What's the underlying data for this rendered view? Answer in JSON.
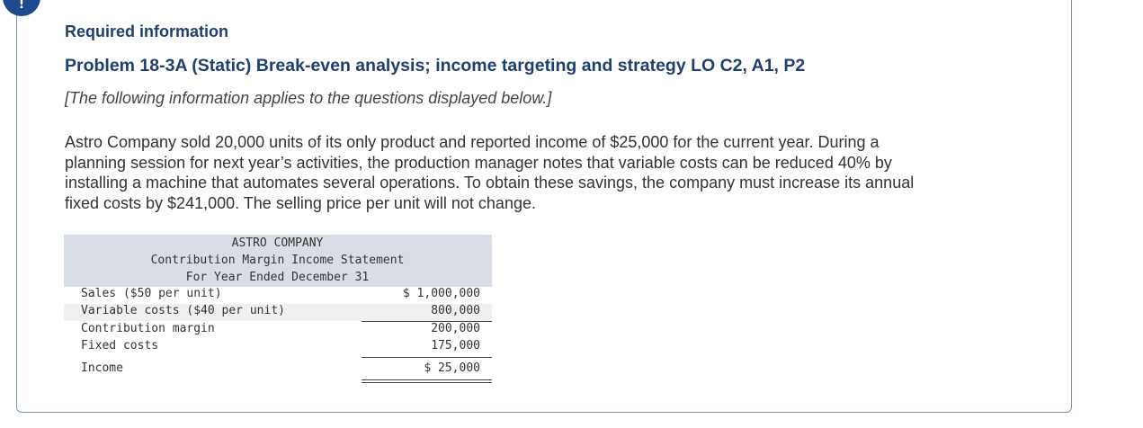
{
  "header": {
    "required_label": "Required information",
    "problem_title": "Problem 18-3A (Static) Break-even analysis; income targeting and strategy LO C2, A1, P2",
    "note": "[The following information applies to the questions displayed below.]"
  },
  "body": {
    "lines": [
      "Astro Company sold 20,000 units of its only product and reported income of $25,000 for the current year. During a",
      "planning session for next year’s activities, the production manager notes that variable costs can be reduced 40% by",
      "installing a machine that automates several operations. To obtain these savings, the company must increase its annual",
      "fixed costs by $241,000. The selling price per unit will not change."
    ]
  },
  "statement": {
    "company": "ASTRO COMPANY",
    "title": "Contribution Margin Income Statement",
    "period": "For Year Ended December 31",
    "rows": [
      {
        "label": "Sales ($50 per unit)",
        "amount": "$ 1,000,000"
      },
      {
        "label": "Variable costs ($40 per unit)",
        "amount": "800,000"
      },
      {
        "label": "Contribution margin",
        "amount": "200,000"
      },
      {
        "label": "Fixed costs",
        "amount": "175,000"
      },
      {
        "label": "Income",
        "amount": "$ 25,000"
      }
    ]
  },
  "colors": {
    "heading": "#1f3f6e",
    "panel_border": "#7a95b5",
    "statement_header_bg": "#d9dde6",
    "badge": "#1c4a8c"
  },
  "icons": {
    "corner_badge": "info-badge-icon"
  }
}
